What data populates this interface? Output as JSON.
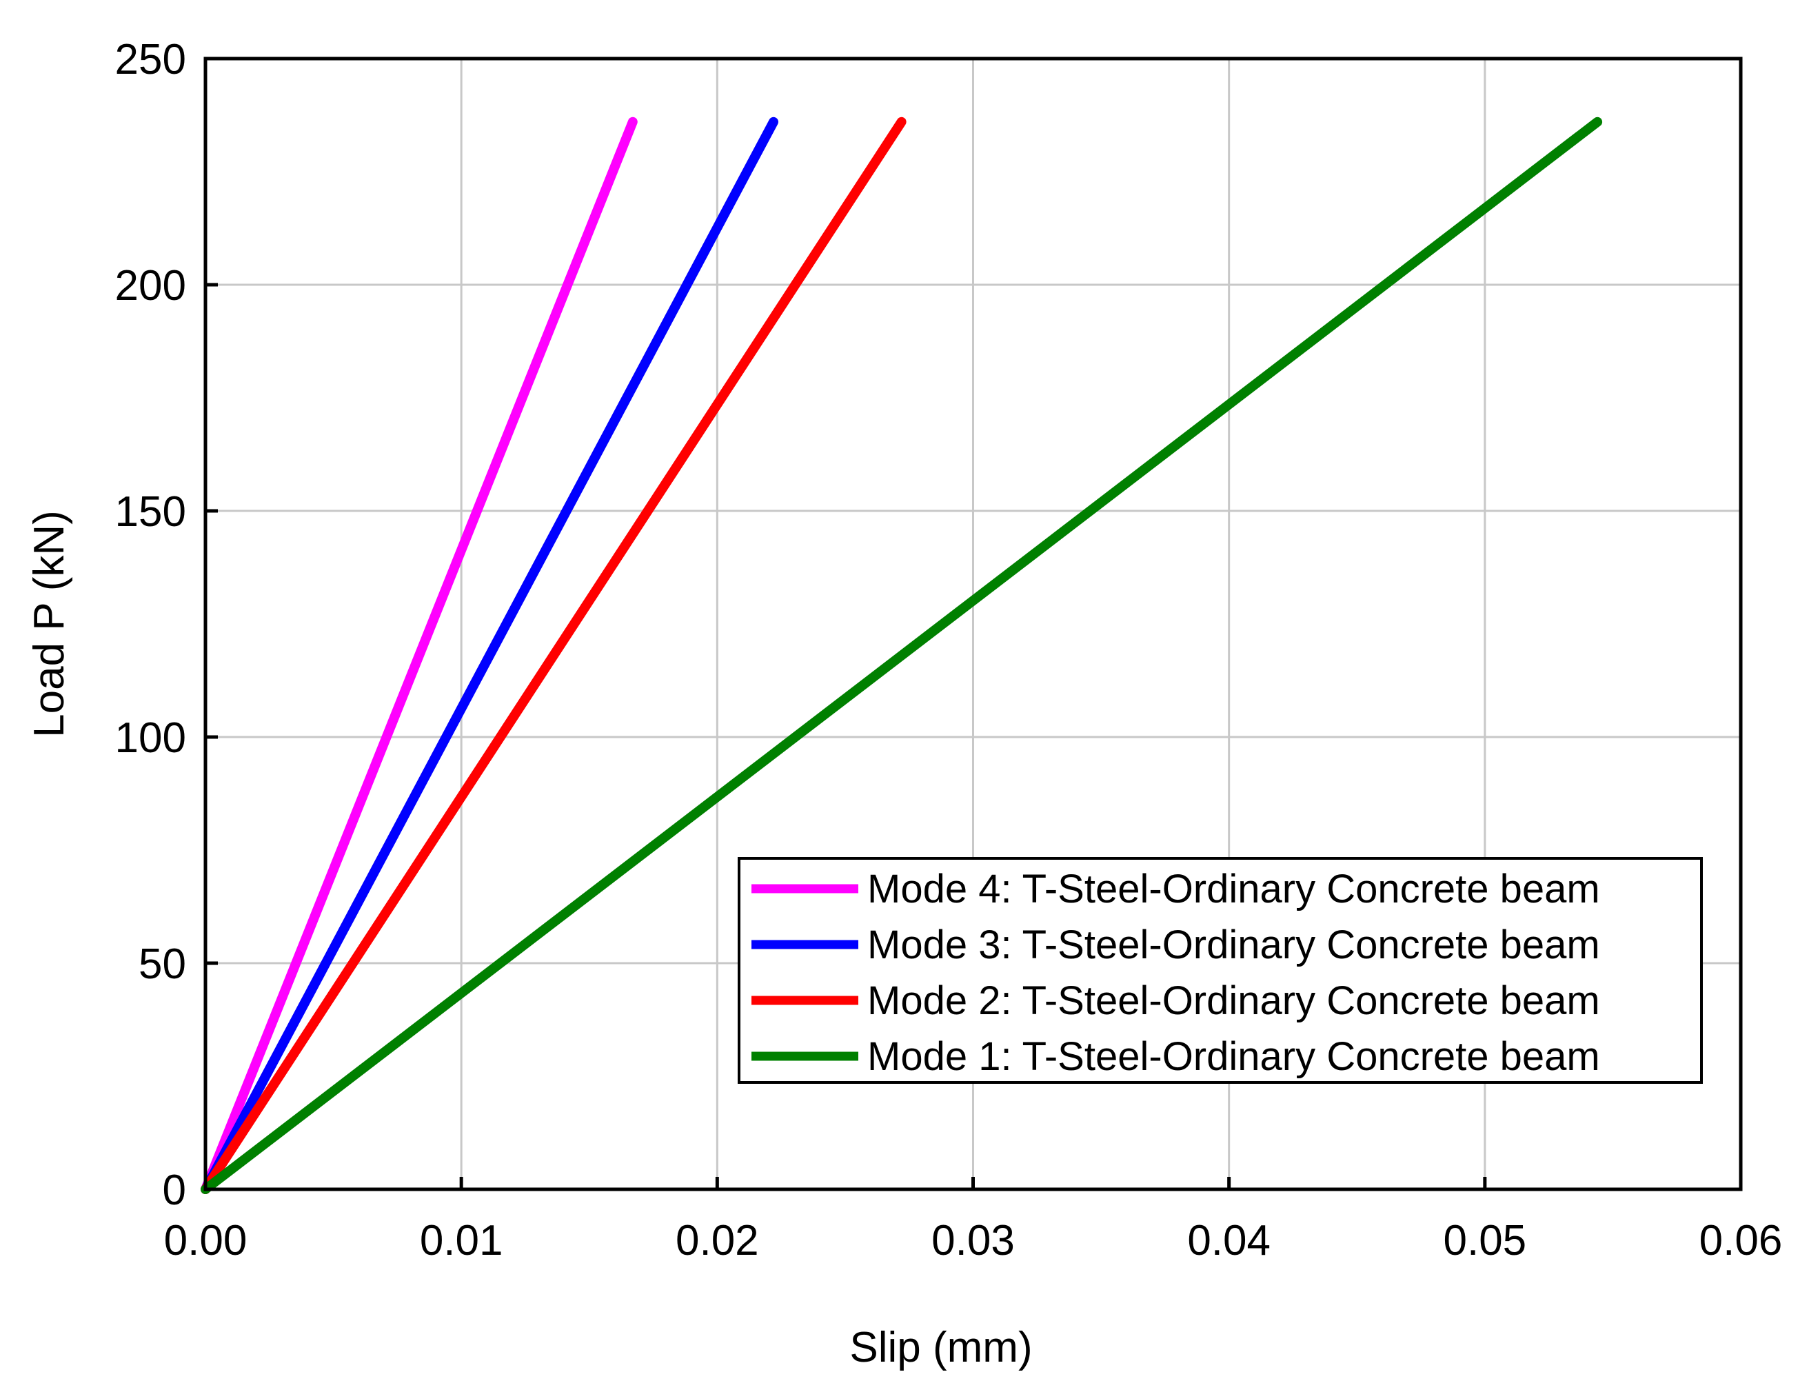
{
  "chart_data": {
    "type": "line",
    "xlabel": "Slip (mm)",
    "ylabel": "Load P (kN)",
    "xlim": [
      0,
      0.06
    ],
    "ylim": [
      0,
      250
    ],
    "x_ticks": [
      "0.00",
      "0.01",
      "0.02",
      "0.03",
      "0.04",
      "0.05",
      "0.06"
    ],
    "y_ticks": [
      "0",
      "50",
      "100",
      "150",
      "200",
      "250"
    ],
    "grid": true,
    "legend_position": "bottom-right",
    "series": [
      {
        "name": "Mode 4: T-Steel-Ordinary Concrete beam",
        "color": "#ff00ff",
        "x": [
          0,
          0.0167
        ],
        "y": [
          0,
          236
        ]
      },
      {
        "name": "Mode 3: T-Steel-Ordinary Concrete beam",
        "color": "#0000ff",
        "x": [
          0,
          0.0222
        ],
        "y": [
          0,
          236
        ]
      },
      {
        "name": "Mode 2: T-Steel-Ordinary Concrete beam",
        "color": "#ff0000",
        "x": [
          0,
          0.0272
        ],
        "y": [
          0,
          236
        ]
      },
      {
        "name": "Mode 1: T-Steel-Ordinary Concrete beam",
        "color": "#008000",
        "x": [
          0,
          0.0544
        ],
        "y": [
          0,
          236
        ]
      }
    ]
  }
}
